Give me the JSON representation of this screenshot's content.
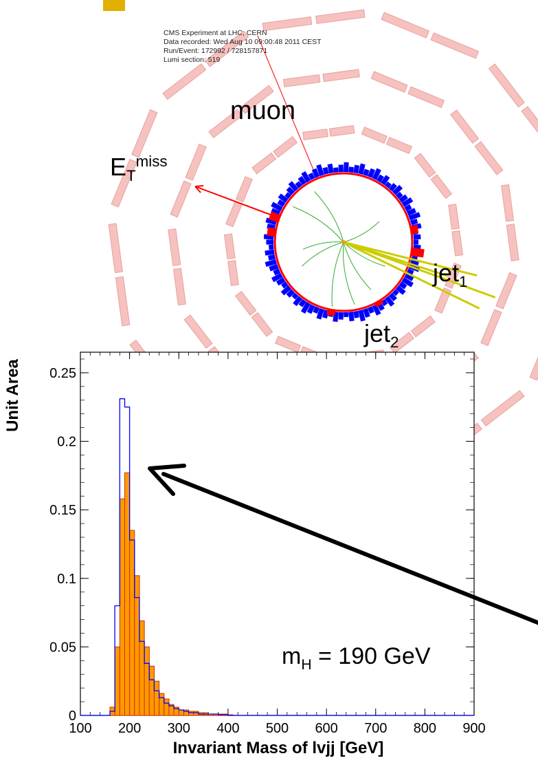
{
  "event_display": {
    "info_lines": [
      "CMS Experiment at LHC, CERN",
      "Data recorded: Wed Aug 10 09:00:48 2011 CEST",
      "Run/Event: 172992 / 728157871",
      "Lumi section: 519"
    ],
    "labels": {
      "muon": "muon",
      "met_base": "E",
      "met_sub": "T",
      "met_sup": "miss",
      "jet1_base": "jet",
      "jet1_sub": "1",
      "jet2_base": "jet",
      "jet2_sub": "2"
    },
    "colors": {
      "barrel_modules": "#f6c2c0",
      "barrel_module_edge": "#e8a09c",
      "tracker_circle": "#ff0000",
      "hcal_deposits": "#0000ff",
      "ecal_deposits": "#ff0000",
      "tracks": "#33aa33",
      "jet_tracks": "#cccc00",
      "muon_track": "#ff2020",
      "met_arrow": "#ff0000"
    }
  },
  "annotation": {
    "mass_label_base": "m",
    "mass_label_sub": "H",
    "mass_label_rest": " = 190 GeV",
    "arrow_color": "#000000"
  },
  "chart_data": {
    "type": "bar",
    "title": "",
    "xlabel": "Invariant Mass of lvjj [GeV]",
    "ylabel": "Unit Area",
    "xlim": [
      100,
      900
    ],
    "ylim": [
      0,
      0.265
    ],
    "xticks": [
      100,
      200,
      300,
      400,
      500,
      600,
      700,
      800,
      900
    ],
    "xtick_labels": [
      "100",
      "200",
      "300",
      "400",
      "500",
      "600",
      "700",
      "800",
      "900"
    ],
    "yticks": [
      0,
      0.05,
      0.1,
      0.15,
      0.2,
      0.25
    ],
    "ytick_labels": [
      "0",
      "0.05",
      "0.1",
      "0.15",
      "0.2",
      "0.25"
    ],
    "bin_edges": [
      100,
      110,
      120,
      130,
      140,
      150,
      160,
      170,
      180,
      190,
      200,
      210,
      220,
      230,
      240,
      250,
      260,
      270,
      280,
      290,
      300,
      310,
      320,
      330,
      340,
      350,
      360,
      370,
      380,
      390,
      400,
      410,
      420,
      430,
      440,
      450,
      460,
      470,
      480,
      490,
      500
    ],
    "series": [
      {
        "style": "filled",
        "color": "#ff9900",
        "edge": "#cc3300",
        "values": [
          0,
          0,
          0,
          0,
          0,
          0,
          0.006,
          0.05,
          0.158,
          0.177,
          0.135,
          0.102,
          0.069,
          0.05,
          0.036,
          0.025,
          0.016,
          0.012,
          0.008,
          0.006,
          0.004,
          0.004,
          0.003,
          0.003,
          0.002,
          0.002,
          0.001,
          0.001,
          0.001,
          0.001,
          0.0005,
          0,
          0,
          0,
          0,
          0,
          0,
          0,
          0,
          0
        ]
      },
      {
        "style": "step",
        "color": "#0000ff",
        "values": [
          0,
          0,
          0,
          0,
          0,
          0,
          0.003,
          0.08,
          0.231,
          0.225,
          0.128,
          0.086,
          0.054,
          0.038,
          0.026,
          0.018,
          0.013,
          0.009,
          0.007,
          0.005,
          0.004,
          0.003,
          0.002,
          0.002,
          0.001,
          0.001,
          0.001,
          0.001,
          0.0005,
          0.0005,
          0,
          0,
          0,
          0,
          0,
          0,
          0,
          0,
          0,
          0
        ]
      }
    ]
  }
}
